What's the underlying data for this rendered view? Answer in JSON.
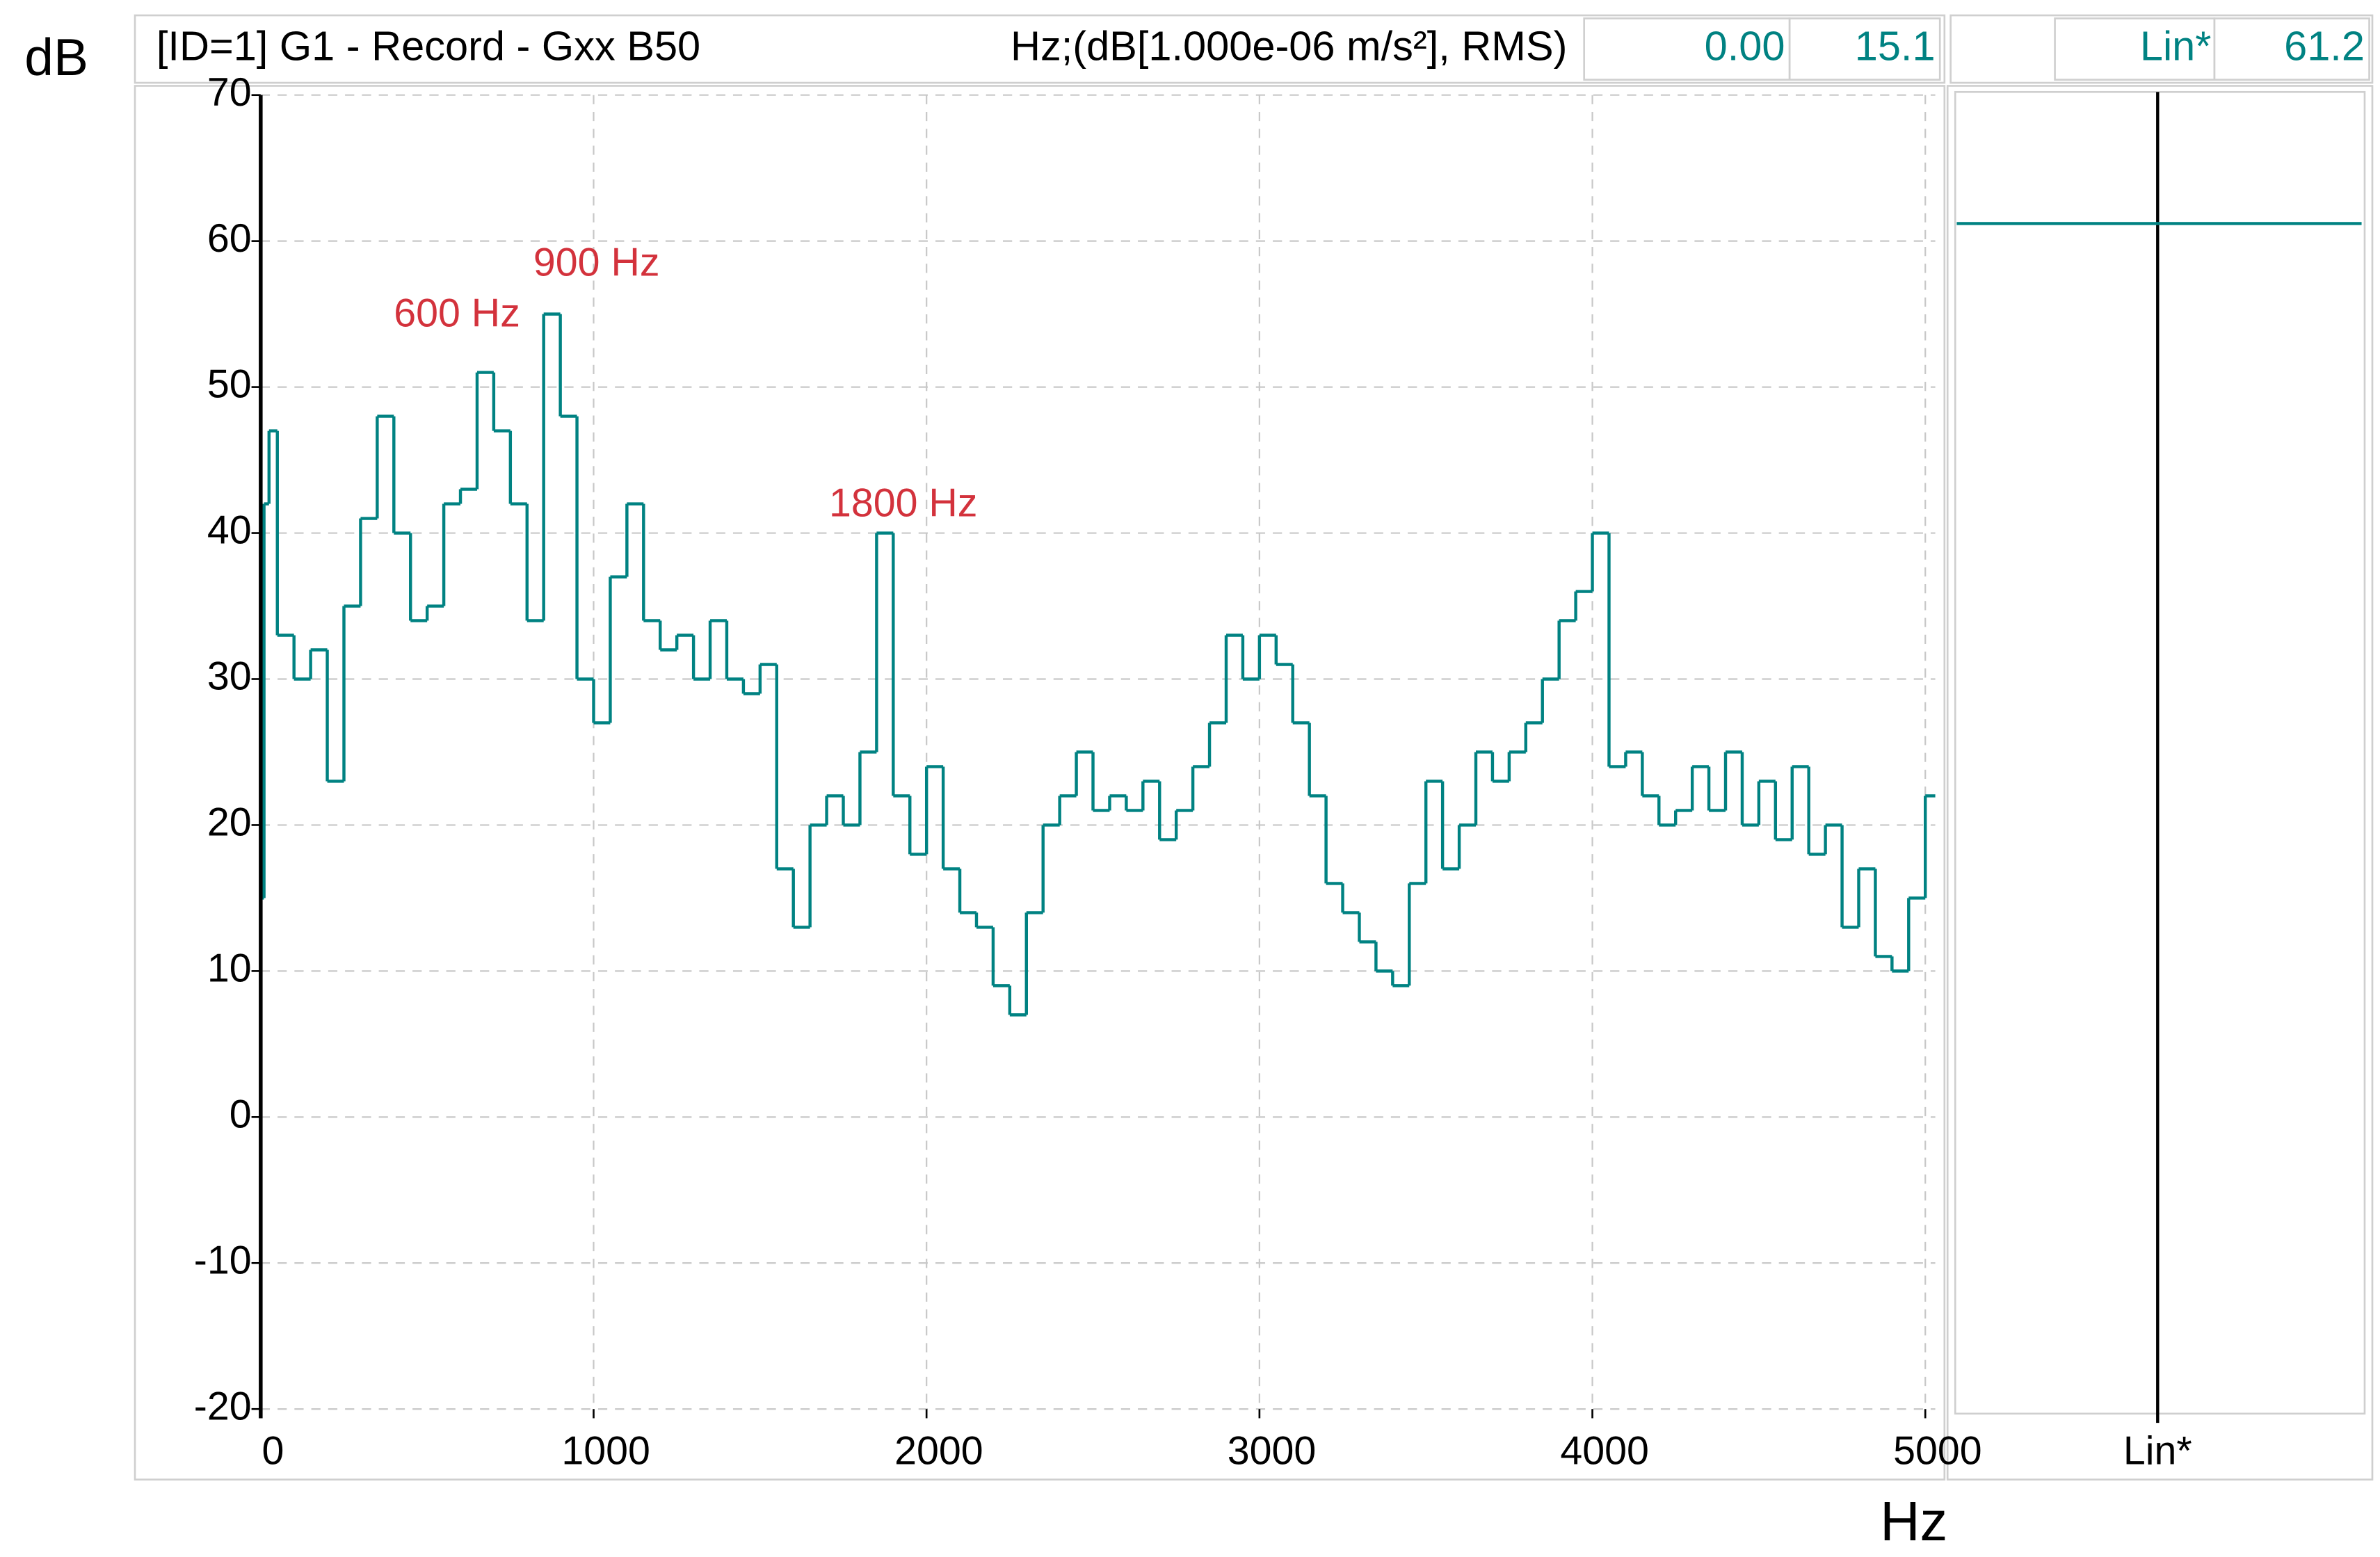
{
  "chart_data": {
    "type": "line",
    "title": "[ID=1] G1  - Record - Gxx B50",
    "subtitle": "Hz;(dB[1.000e-06 m/s²], RMS)",
    "y_label": "dB",
    "x_label": "Hz",
    "xlim": [
      0,
      5030
    ],
    "ylim": [
      -20,
      70
    ],
    "xticks": [
      0,
      1000,
      2000,
      3000,
      4000,
      5000
    ],
    "yticks": [
      -20,
      -10,
      0,
      10,
      20,
      30,
      40,
      50,
      60,
      70
    ],
    "grid": true,
    "step": true,
    "cursor_x": {
      "value": 0,
      "label": "0.00"
    },
    "cursor_y": 15.1,
    "overall": {
      "label": "Lin*",
      "value": 61.2
    },
    "annotations": [
      "600 Hz",
      "900 Hz",
      "1800 Hz"
    ],
    "annotation_color": "#d3323c",
    "x": [
      0,
      10,
      25,
      50,
      100,
      150,
      200,
      250,
      300,
      350,
      400,
      450,
      500,
      550,
      600,
      650,
      700,
      750,
      800,
      850,
      900,
      950,
      1000,
      1050,
      1100,
      1150,
      1200,
      1250,
      1300,
      1350,
      1400,
      1450,
      1500,
      1550,
      1600,
      1650,
      1700,
      1750,
      1800,
      1850,
      1900,
      1950,
      2000,
      2050,
      2100,
      2150,
      2200,
      2250,
      2300,
      2350,
      2400,
      2450,
      2500,
      2550,
      2600,
      2650,
      2700,
      2750,
      2800,
      2850,
      2900,
      2950,
      3000,
      3050,
      3100,
      3150,
      3200,
      3250,
      3300,
      3350,
      3400,
      3450,
      3500,
      3550,
      3600,
      3650,
      3700,
      3750,
      3800,
      3850,
      3900,
      3950,
      4000,
      4050,
      4100,
      4150,
      4200,
      4250,
      4300,
      4350,
      4400,
      4450,
      4500,
      4550,
      4600,
      4650,
      4700,
      4750,
      4800,
      4850,
      4900,
      4950,
      5000
    ],
    "series": [
      {
        "name": "G1",
        "color": "#008282",
        "values": [
          15,
          42,
          47,
          33,
          30,
          32,
          23,
          35,
          41,
          48,
          40,
          34,
          35,
          42,
          43,
          51,
          47,
          42,
          34,
          55,
          48,
          30,
          27,
          37,
          42,
          34,
          32,
          33,
          30,
          34,
          30,
          29,
          31,
          17,
          13,
          20,
          22,
          20,
          25,
          40,
          22,
          18,
          24,
          17,
          14,
          13,
          9,
          7,
          14,
          20,
          22,
          25,
          21,
          22,
          21,
          23,
          19,
          21,
          24,
          27,
          33,
          30,
          33,
          31,
          27,
          22,
          16,
          14,
          12,
          10,
          9,
          16,
          23,
          17,
          20,
          25,
          23,
          25,
          27,
          30,
          34,
          36,
          40,
          24,
          25,
          22,
          20,
          21,
          24,
          21,
          25,
          20,
          23,
          19,
          24,
          18,
          20,
          13,
          17,
          11,
          10,
          15,
          22
        ]
      }
    ]
  }
}
